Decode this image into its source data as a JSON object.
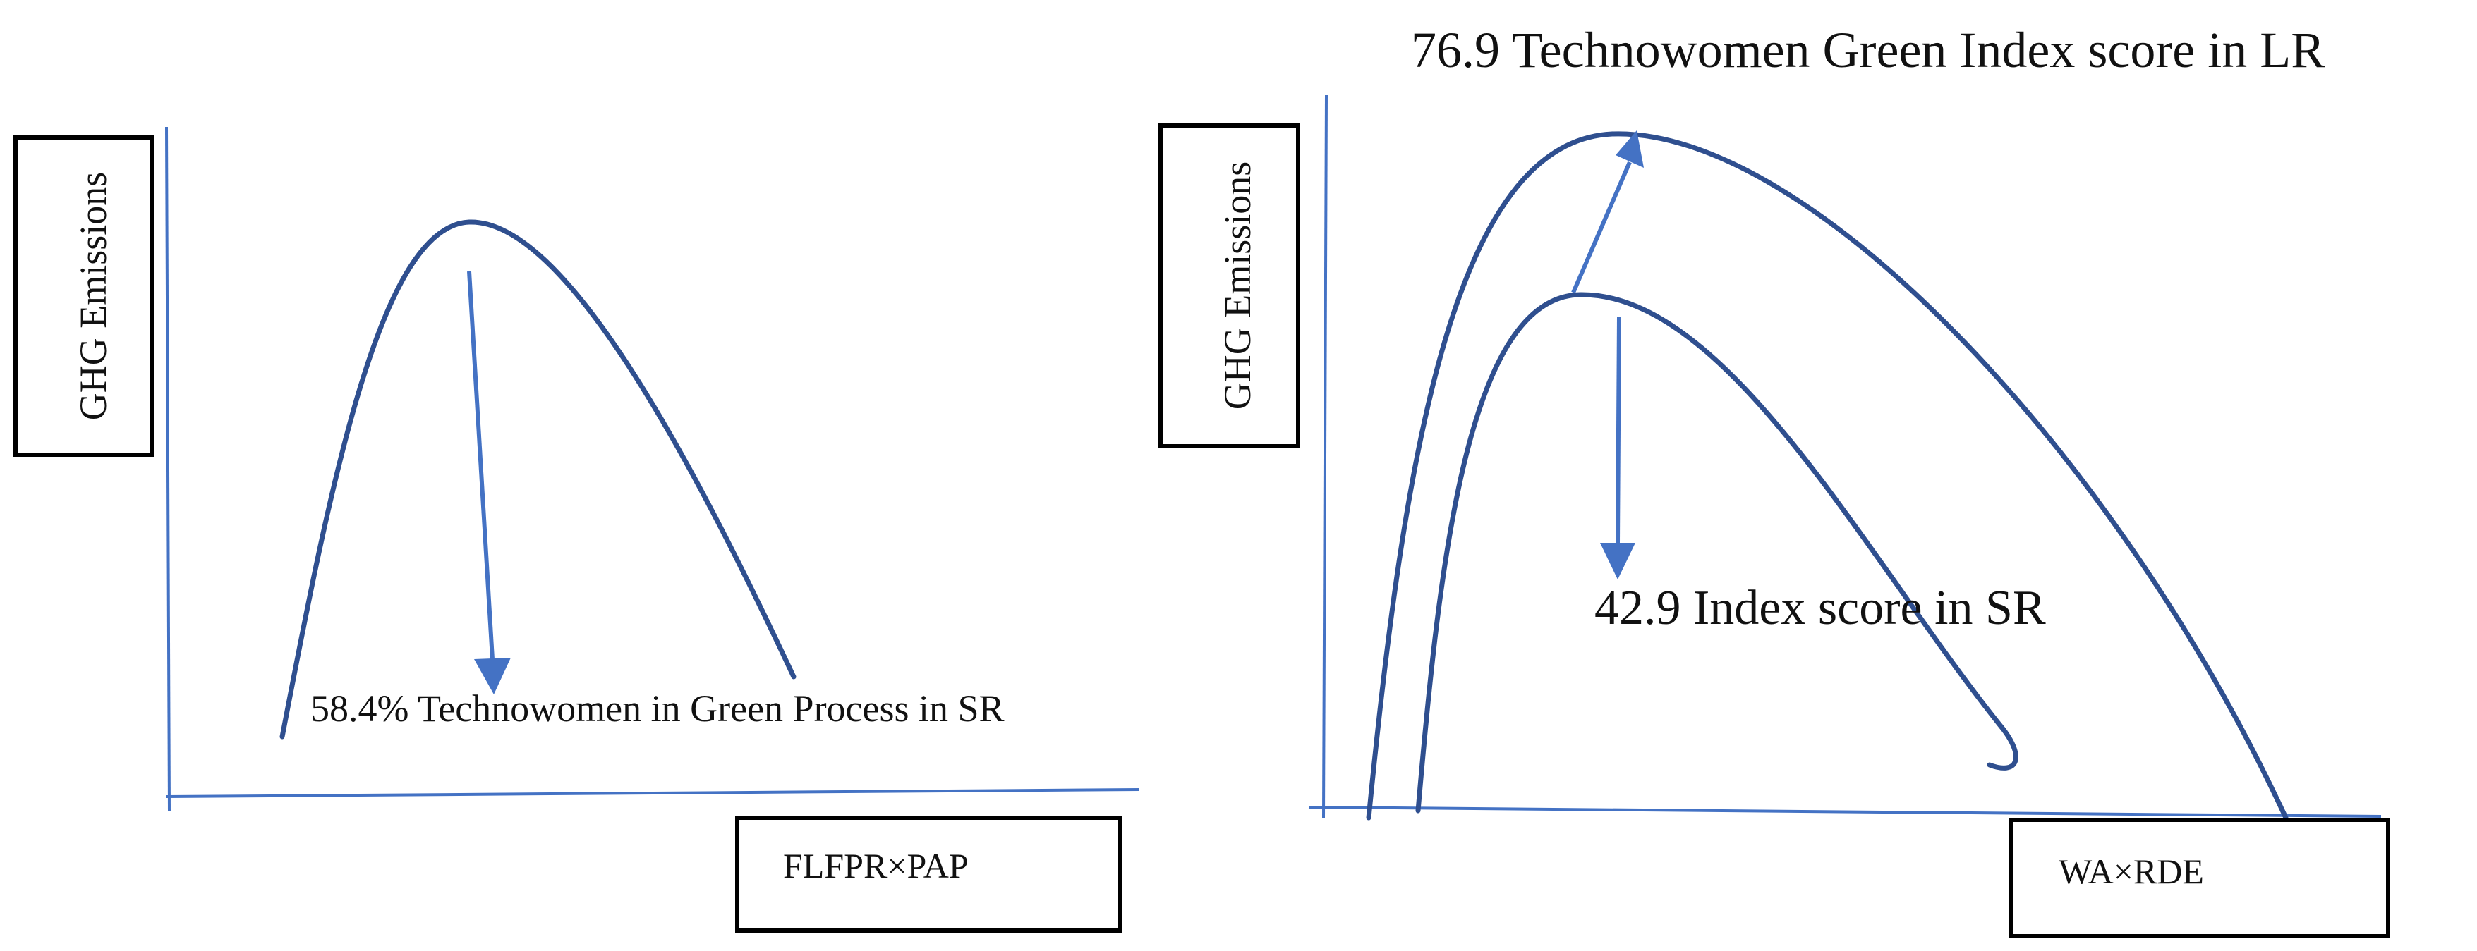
{
  "colors": {
    "axis": "#4472c4",
    "curve": "#2f4f8f",
    "arrow": "#4472c4",
    "text": "#111111",
    "box_border": "#000000"
  },
  "left_panel": {
    "y_axis_label": "GHG Emissions",
    "x_axis_label": "FLFPR×PAP",
    "annotation": "58.4% Technowomen in Green Process in SR"
  },
  "right_panel": {
    "y_axis_label": "GHG Emissions",
    "x_axis_label": "WA×RDE",
    "annotation_top": "76.9 Technowomen Green Index score in LR",
    "annotation_inner": "42.9 Index score in SR"
  }
}
